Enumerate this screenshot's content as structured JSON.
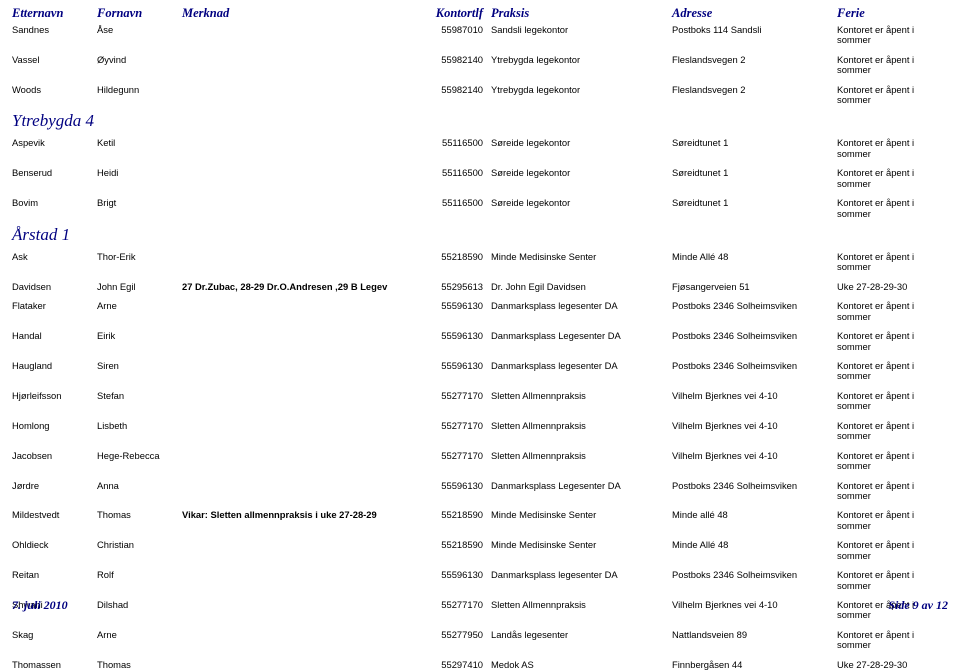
{
  "colors": {
    "heading": "#000080",
    "body": "#000000",
    "background": "#ffffff"
  },
  "typography": {
    "heading_font": "Times New Roman",
    "body_font": "Arial",
    "heading_size_pt": 12.5,
    "body_size_pt": 9.4,
    "section_size_pt": 17
  },
  "columns": {
    "etternavn": "Etternavn",
    "fornavn": "Fornavn",
    "merknad": "Merknad",
    "kontortlf": "Kontortlf",
    "praksis": "Praksis",
    "adresse": "Adresse",
    "ferie": "Ferie"
  },
  "top_rows": [
    {
      "etternavn": "Sandnes",
      "fornavn": "Åse",
      "merknad": "",
      "kontortlf": "55987010",
      "praksis": "Sandsli legekontor",
      "adresse": "Postboks 114 Sandsli",
      "ferie": "Kontoret er åpent i sommer"
    },
    {
      "etternavn": "Vassel",
      "fornavn": "Øyvind",
      "merknad": "",
      "kontortlf": "55982140",
      "praksis": "Ytrebygda legekontor",
      "adresse": "Fleslandsvegen 2",
      "ferie": "Kontoret er åpent i sommer"
    },
    {
      "etternavn": "Woods",
      "fornavn": "Hildegunn",
      "merknad": "",
      "kontortlf": "55982140",
      "praksis": "Ytrebygda legekontor",
      "adresse": "Fleslandsvegen 2",
      "ferie": "Kontoret er åpent i sommer"
    }
  ],
  "sections": [
    {
      "title": "Ytrebygda 4",
      "rows": [
        {
          "etternavn": "Aspevik",
          "fornavn": "Ketil",
          "merknad": "",
          "kontortlf": "55116500",
          "praksis": "Søreide legekontor",
          "adresse": "Søreidtunet 1",
          "ferie": "Kontoret er åpent i sommer"
        },
        {
          "etternavn": "Benserud",
          "fornavn": "Heidi",
          "merknad": "",
          "kontortlf": "55116500",
          "praksis": "Søreide legekontor",
          "adresse": "Søreidtunet 1",
          "ferie": "Kontoret er åpent i sommer"
        },
        {
          "etternavn": "Bovim",
          "fornavn": "Brigt",
          "merknad": "",
          "kontortlf": "55116500",
          "praksis": "Søreide legekontor",
          "adresse": "Søreidtunet 1",
          "ferie": "Kontoret er åpent i sommer"
        }
      ]
    },
    {
      "title": "Årstad 1",
      "rows": [
        {
          "etternavn": "Ask",
          "fornavn": "Thor-Erik",
          "merknad": "",
          "kontortlf": "55218590",
          "praksis": "Minde Medisinske Senter",
          "adresse": "Minde Allé 48",
          "ferie": "Kontoret er åpent i sommer"
        },
        {
          "etternavn": "Davidsen",
          "fornavn": "John Egil",
          "merknad": "27 Dr.Zubac, 28-29 Dr.O.Andresen ,29 B Legev",
          "kontortlf": "55295613",
          "praksis": "Dr. John Egil Davidsen",
          "adresse": "Fjøsangerveien 51",
          "ferie": "Uke 27-28-29-30"
        },
        {
          "etternavn": "Flataker",
          "fornavn": "Arne",
          "merknad": "",
          "kontortlf": "55596130",
          "praksis": "Danmarksplass legesenter DA",
          "adresse": "Postboks 2346 Solheimsviken",
          "ferie": "Kontoret er åpent i sommer"
        },
        {
          "etternavn": "Handal",
          "fornavn": "Eirik",
          "merknad": "",
          "kontortlf": "55596130",
          "praksis": "Danmarksplass Legesenter DA",
          "adresse": "Postboks 2346 Solheimsviken",
          "ferie": "Kontoret er åpent i sommer"
        },
        {
          "etternavn": "Haugland",
          "fornavn": "Siren",
          "merknad": "",
          "kontortlf": "55596130",
          "praksis": "Danmarksplass legesenter DA",
          "adresse": "Postboks 2346 Solheimsviken",
          "ferie": "Kontoret er åpent i sommer"
        },
        {
          "etternavn": "Hjørleifsson",
          "fornavn": "Stefan",
          "merknad": "",
          "kontortlf": "55277170",
          "praksis": "Sletten Allmennpraksis",
          "adresse": "Vilhelm Bjerknes vei 4-10",
          "ferie": "Kontoret er åpent i sommer"
        },
        {
          "etternavn": "Homlong",
          "fornavn": "Lisbeth",
          "merknad": "",
          "kontortlf": "55277170",
          "praksis": "Sletten Allmennpraksis",
          "adresse": "Vilhelm Bjerknes vei 4-10",
          "ferie": "Kontoret er åpent i sommer"
        },
        {
          "etternavn": "Jacobsen",
          "fornavn": "Hege-Rebecca",
          "merknad": "",
          "kontortlf": "55277170",
          "praksis": "Sletten Allmennpraksis",
          "adresse": "Vilhelm Bjerknes vei 4-10",
          "ferie": "Kontoret er åpent i sommer"
        },
        {
          "etternavn": "Jørdre",
          "fornavn": "Anna",
          "merknad": "",
          "kontortlf": "55596130",
          "praksis": "Danmarksplass Legesenter DA",
          "adresse": "Postboks 2346 Solheimsviken",
          "ferie": "Kontoret er åpent i sommer"
        },
        {
          "etternavn": "Mildestvedt",
          "fornavn": "Thomas",
          "merknad": "Vikar: Sletten allmennpraksis i uke 27-28-29",
          "kontortlf": "55218590",
          "praksis": "Minde Medisinske Senter",
          "adresse": "Minde allé 48",
          "ferie": "Kontoret er åpent i sommer"
        },
        {
          "etternavn": "Ohldieck",
          "fornavn": "Christian",
          "merknad": "",
          "kontortlf": "55218590",
          "praksis": "Minde Medisinske Senter",
          "adresse": "Minde Allé 48",
          "ferie": "Kontoret er åpent i sommer"
        },
        {
          "etternavn": "Reitan",
          "fornavn": "Rolf",
          "merknad": "",
          "kontortlf": "55596130",
          "praksis": "Danmarksplass legesenter DA",
          "adresse": "Postboks 2346 Solheimsviken",
          "ferie": "Kontoret er åpent i sommer"
        },
        {
          "etternavn": "Shwani",
          "fornavn": "Dilshad",
          "merknad": "",
          "kontortlf": "55277170",
          "praksis": "Sletten Allmennpraksis",
          "adresse": "Vilhelm Bjerknes vei 4-10",
          "ferie": "Kontoret er åpent i sommer"
        },
        {
          "etternavn": "Skag",
          "fornavn": "Arne",
          "merknad": "",
          "kontortlf": "55277950",
          "praksis": "Landås legesenter",
          "adresse": "Nattlandsveien 89",
          "ferie": "Kontoret er åpent i sommer"
        },
        {
          "etternavn": "Thomassen",
          "fornavn": "Thomas",
          "merknad": "",
          "kontortlf": "55297410",
          "praksis": "Medok AS",
          "adresse": "Finnbergåsen 44",
          "ferie": "Uke 27-28-29-30"
        }
      ]
    }
  ],
  "footer": {
    "date": "7. juli 2010",
    "page": "Side 9 av 12"
  }
}
